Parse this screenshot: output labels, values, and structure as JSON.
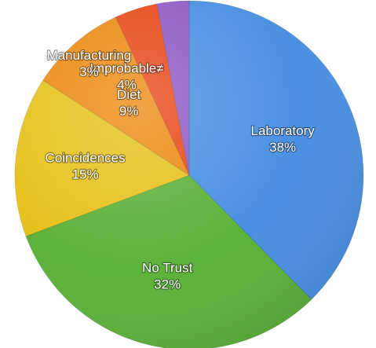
{
  "chart_data": {
    "type": "pie",
    "start": "12 o'clock",
    "direction": "clockwise",
    "slices": [
      {
        "label": "Laboratory",
        "percent_label": "38%",
        "value": 38,
        "color": "#4a90e2"
      },
      {
        "label": "No Trust",
        "percent_label": "32%",
        "value": 32,
        "color": "#5cb23a"
      },
      {
        "label": "Coincidences",
        "percent_label": "15%",
        "value": 15,
        "color": "#e6c21c"
      },
      {
        "label": "Diet",
        "percent_label": "9%",
        "value": 9,
        "color": "#ec8a12"
      },
      {
        "label": "Improbable≠",
        "percent_label": "4%",
        "value": 4,
        "color": "#e84818"
      },
      {
        "label": "Manufacturing",
        "percent_label": "3%",
        "value": 3,
        "color": "#8e5ac4"
      }
    ]
  }
}
